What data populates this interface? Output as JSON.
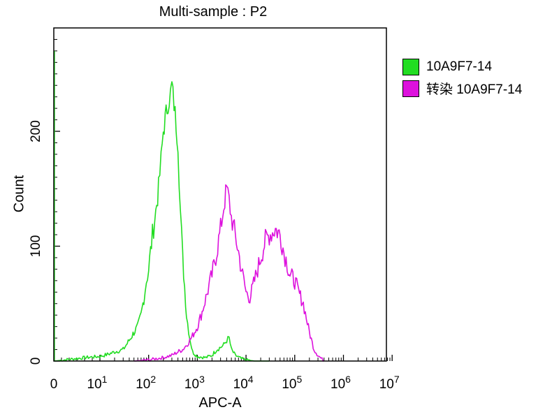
{
  "chart_data": {
    "type": "line",
    "title": "Multi-sample : P2",
    "xlabel": "APC-A",
    "ylabel": "Count",
    "x_scale": "log",
    "xlim": [
      0,
      10000000
    ],
    "ylim": [
      0,
      290
    ],
    "x_ticks": [
      {
        "value": 0,
        "base": "0",
        "exp": ""
      },
      {
        "value": 10,
        "base": "10",
        "exp": "1"
      },
      {
        "value": 100,
        "base": "10",
        "exp": "2"
      },
      {
        "value": 1000,
        "base": "10",
        "exp": "3"
      },
      {
        "value": 10000,
        "base": "10",
        "exp": "4"
      },
      {
        "value": 100000,
        "base": "10",
        "exp": "5"
      },
      {
        "value": 1000000,
        "base": "10",
        "exp": "6"
      },
      {
        "value": 10000000,
        "base": "10",
        "exp": "7"
      }
    ],
    "y_ticks": [
      0,
      100,
      200
    ],
    "grid": false,
    "legend_position": "right",
    "series": [
      {
        "name": "10A9F7-14",
        "color": "#22dd22",
        "x": [
          0.5,
          3,
          5,
          10,
          15,
          20,
          30,
          40,
          50,
          60,
          70,
          80,
          90,
          100,
          120,
          140,
          160,
          180,
          200,
          250,
          280,
          300,
          350,
          400,
          450,
          500,
          600,
          700,
          800,
          1000,
          1500,
          2000,
          2500,
          3000,
          3500,
          4000,
          4500,
          5000,
          6000,
          8000,
          10000,
          15000,
          30000
        ],
        "y": [
          0,
          2,
          3,
          4,
          6,
          8,
          10,
          18,
          25,
          30,
          40,
          55,
          70,
          80,
          110,
          130,
          150,
          175,
          200,
          225,
          232,
          240,
          215,
          190,
          130,
          90,
          40,
          20,
          8,
          4,
          3,
          5,
          10,
          12,
          14,
          18,
          20,
          10,
          5,
          2,
          1,
          0,
          0
        ]
      },
      {
        "name": "转染 10A9F7-14",
        "color": "#dd11dd",
        "x": [
          50,
          100,
          200,
          300,
          400,
          500,
          600,
          700,
          800,
          1000,
          1200,
          1500,
          2000,
          2500,
          3000,
          3500,
          4000,
          4500,
          5000,
          6000,
          7000,
          8000,
          9000,
          10000,
          12000,
          15000,
          20000,
          25000,
          30000,
          35000,
          40000,
          50000,
          60000,
          70000,
          80000,
          100000,
          120000,
          150000,
          200000,
          250000,
          300000,
          400000
        ],
        "y": [
          0,
          1,
          3,
          5,
          8,
          10,
          14,
          18,
          22,
          30,
          40,
          55,
          75,
          95,
          115,
          135,
          150,
          140,
          125,
          110,
          95,
          80,
          70,
          60,
          55,
          70,
          90,
          105,
          110,
          112,
          115,
          110,
          95,
          85,
          75,
          70,
          60,
          50,
          25,
          10,
          5,
          0
        ]
      }
    ]
  }
}
